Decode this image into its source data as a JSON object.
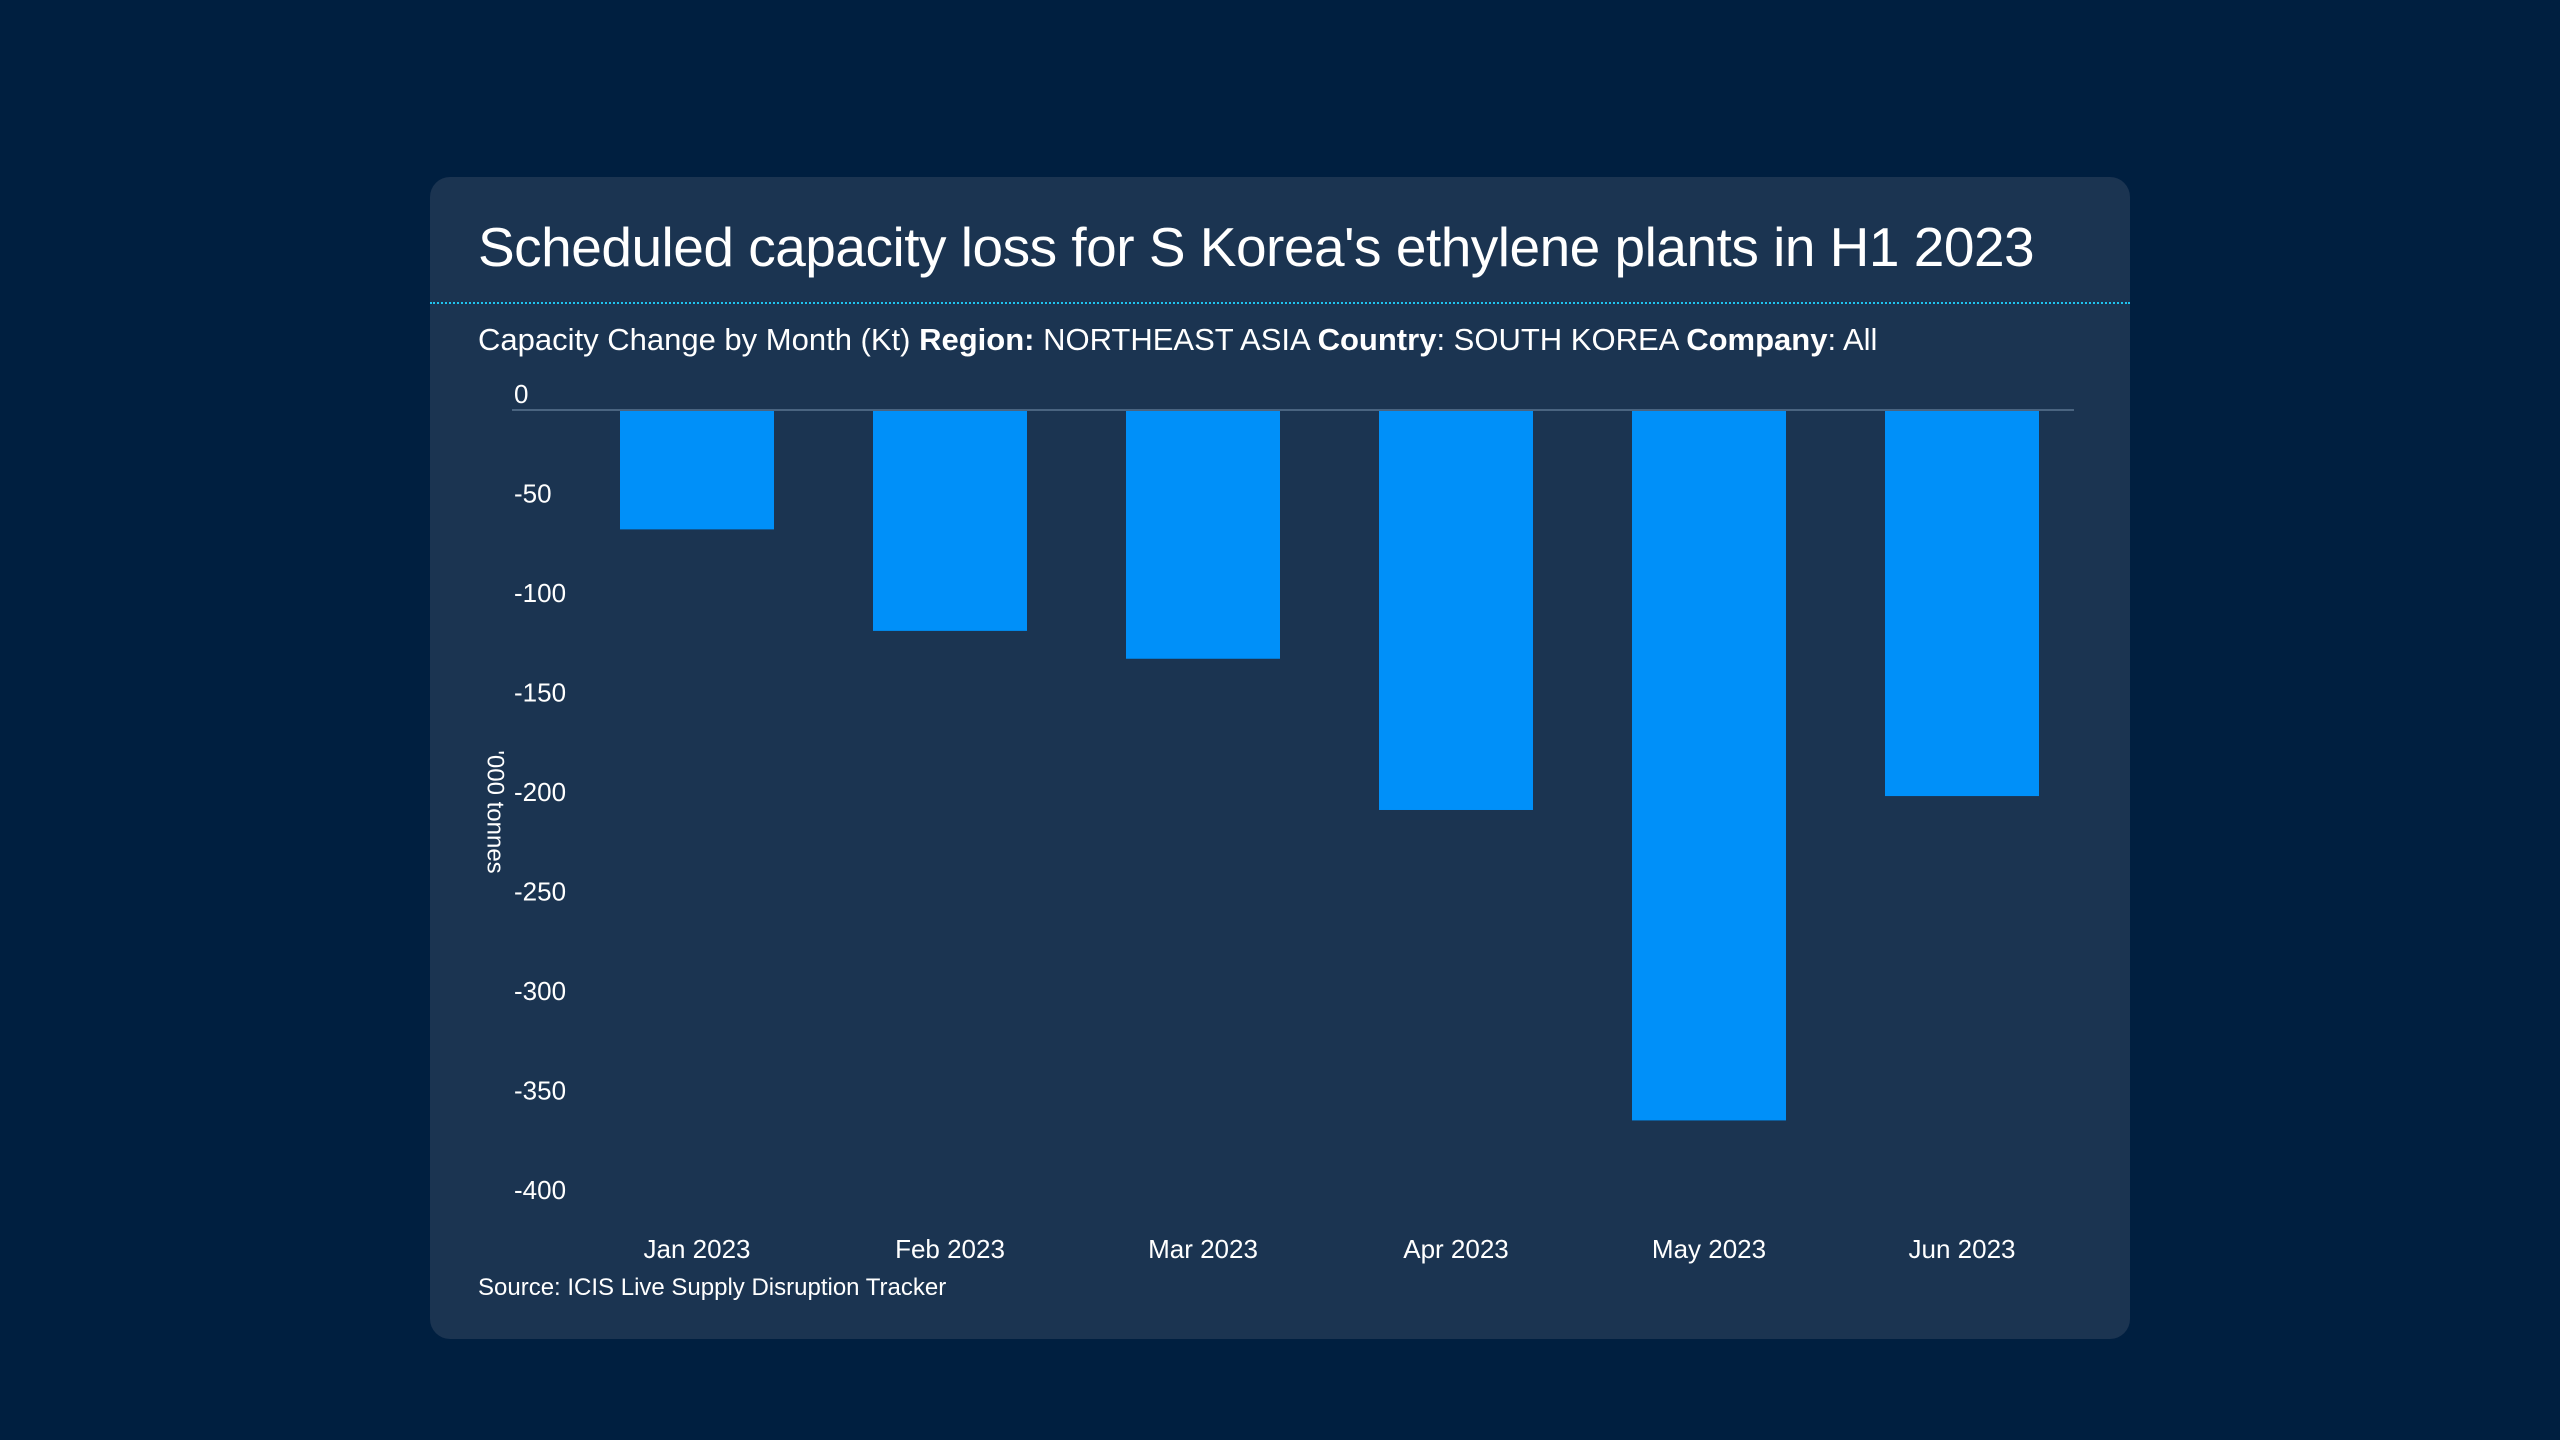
{
  "chart_data": {
    "type": "bar",
    "title": "Scheduled capacity loss for S Korea's ethylene plants in H1 2023",
    "subtitle": {
      "prefix": "Capacity Change by Month (Kt) ",
      "region_label": "Region:",
      "region_value": " NORTHEAST ASIA ",
      "country_label": "Country",
      "country_value": ": SOUTH KOREA ",
      "company_label": "Company",
      "company_value": ": All"
    },
    "categories": [
      "Jan 2023",
      "Feb 2023",
      "Mar 2023",
      "Apr 2023",
      "May 2023",
      "Jun 2023"
    ],
    "values": [
      -60,
      -111,
      -125,
      -201,
      -357,
      -194
    ],
    "xlabel": "",
    "ylabel": "'000 tonnes",
    "ylim": [
      -400,
      0
    ],
    "yticks": [
      0,
      -50,
      -100,
      -150,
      -200,
      -250,
      -300,
      -350,
      -400
    ],
    "ytick_labels": [
      "0",
      "-50",
      "-100",
      "-150",
      "-200",
      "-250",
      "-300",
      "-350",
      "-400"
    ],
    "grid": false,
    "legend": "none",
    "source": "Source: ICIS Live Supply Disruption Tracker"
  },
  "colors": {
    "page_background": "#001f40",
    "card_background": "#1b3451",
    "bar": "#0090f9",
    "divider": "#1fc3ee",
    "zero_line": "#4a6480",
    "text": "#ffffff"
  }
}
